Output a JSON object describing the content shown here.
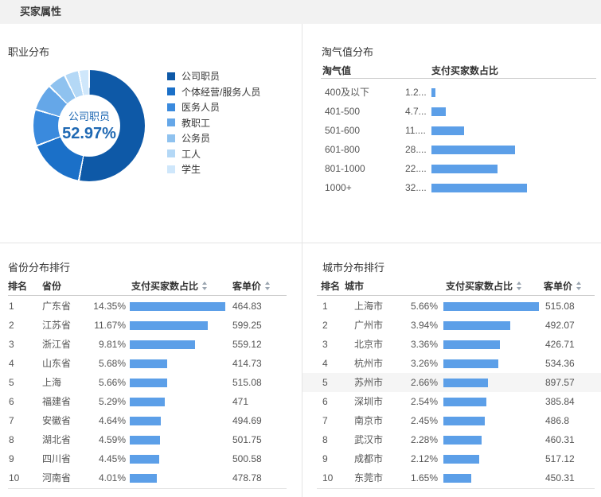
{
  "header": {
    "title": "买家属性"
  },
  "colors": {
    "bar_blue": "#5c9fe8",
    "row_highlight": "#f5f5f5",
    "donut_center_text": "#1e68b3",
    "donut_shades": [
      "#0e59a7",
      "#1b70c8",
      "#3a8add",
      "#65a7e8",
      "#8fc2ef",
      "#b4d8f6",
      "#cfe7fb"
    ]
  },
  "occupation": {
    "title": "职业分布",
    "center": {
      "label": "公司职员",
      "value": "52.97%"
    }
  },
  "taoqi": {
    "title": "淘气值分布",
    "col_range": "淘气值",
    "col_ratio": "支付买家数占比"
  },
  "province": {
    "title": "省份分布排行",
    "col_rank": "排名",
    "col_name": "省份",
    "col_ratio": "支付买家数占比",
    "col_price": "客单价",
    "rows": [
      {
        "rank": "1",
        "name": "广东省",
        "ratio": "14.35%",
        "value": 14.35,
        "price": "464.83"
      },
      {
        "rank": "2",
        "name": "江苏省",
        "ratio": "11.67%",
        "value": 11.67,
        "price": "599.25"
      },
      {
        "rank": "3",
        "name": "浙江省",
        "ratio": "9.81%",
        "value": 9.81,
        "price": "559.12"
      },
      {
        "rank": "4",
        "name": "山东省",
        "ratio": "5.68%",
        "value": 5.68,
        "price": "414.73"
      },
      {
        "rank": "5",
        "name": "上海",
        "ratio": "5.66%",
        "value": 5.66,
        "price": "515.08"
      },
      {
        "rank": "6",
        "name": "福建省",
        "ratio": "5.29%",
        "value": 5.29,
        "price": "471"
      },
      {
        "rank": "7",
        "name": "安徽省",
        "ratio": "4.64%",
        "value": 4.64,
        "price": "494.69"
      },
      {
        "rank": "8",
        "name": "湖北省",
        "ratio": "4.59%",
        "value": 4.59,
        "price": "501.75"
      },
      {
        "rank": "9",
        "name": "四川省",
        "ratio": "4.45%",
        "value": 4.45,
        "price": "500.58"
      },
      {
        "rank": "10",
        "name": "河南省",
        "ratio": "4.01%",
        "value": 4.01,
        "price": "478.78"
      }
    ]
  },
  "city": {
    "title": "城市分布排行",
    "col_rank": "排名",
    "col_name": "城市",
    "col_ratio": "支付买家数占比",
    "col_price": "客单价",
    "rows": [
      {
        "rank": "1",
        "name": "上海市",
        "ratio": "5.66%",
        "value": 5.66,
        "price": "515.08"
      },
      {
        "rank": "2",
        "name": "广州市",
        "ratio": "3.94%",
        "value": 3.94,
        "price": "492.07"
      },
      {
        "rank": "3",
        "name": "北京市",
        "ratio": "3.36%",
        "value": 3.36,
        "price": "426.71"
      },
      {
        "rank": "4",
        "name": "杭州市",
        "ratio": "3.26%",
        "value": 3.26,
        "price": "534.36"
      },
      {
        "rank": "5",
        "name": "苏州市",
        "ratio": "2.66%",
        "value": 2.66,
        "price": "897.57",
        "hl": true
      },
      {
        "rank": "6",
        "name": "深圳市",
        "ratio": "2.54%",
        "value": 2.54,
        "price": "385.84"
      },
      {
        "rank": "7",
        "name": "南京市",
        "ratio": "2.45%",
        "value": 2.45,
        "price": "486.8"
      },
      {
        "rank": "8",
        "name": "武汉市",
        "ratio": "2.28%",
        "value": 2.28,
        "price": "460.31"
      },
      {
        "rank": "9",
        "name": "成都市",
        "ratio": "2.12%",
        "value": 2.12,
        "price": "517.12"
      },
      {
        "rank": "10",
        "name": "东莞市",
        "ratio": "1.65%",
        "value": 1.65,
        "price": "450.31"
      }
    ]
  },
  "chart_data": [
    {
      "type": "pie",
      "title": "职业分布",
      "labels": [
        "公司职员",
        "个体经营/服务人员",
        "医务人员",
        "教职工",
        "公务员",
        "工人",
        "学生"
      ],
      "values": [
        52.97,
        16.2,
        10.5,
        7.8,
        5.3,
        4.2,
        3.03
      ],
      "labeled_value": "公司职员 52.97% (other slice values estimated from arc angles)",
      "colors": [
        "#0e59a7",
        "#1b70c8",
        "#3a8add",
        "#65a7e8",
        "#8fc2ef",
        "#b4d8f6",
        "#cfe7fb"
      ],
      "legend_position": "right",
      "donut": true
    },
    {
      "type": "bar",
      "title": "淘气值分布",
      "orientation": "horizontal",
      "categories": [
        "400及以下",
        "401-500",
        "501-600",
        "601-800",
        "801-1000",
        "1000+"
      ],
      "values": [
        1.2,
        4.7,
        11,
        28,
        22,
        32
      ],
      "value_labels": [
        "1.2...",
        "4.7...",
        "11....",
        "28....",
        "22....",
        "32...."
      ],
      "xlabel": "支付买家数占比",
      "ylabel": "淘气值"
    }
  ]
}
